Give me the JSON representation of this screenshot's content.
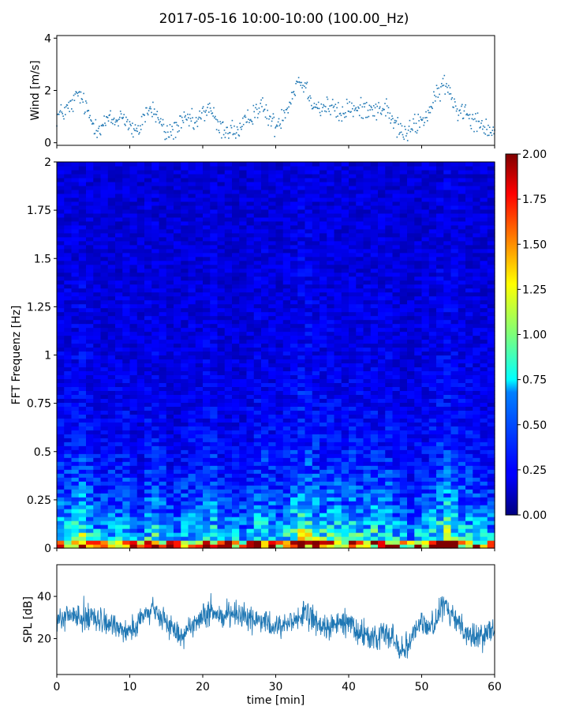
{
  "figure": {
    "title": "2017-05-16 10:00-10:00 (100.00_Hz)"
  },
  "chart_data": [
    {
      "type": "scatter",
      "name": "wind",
      "ylabel": "Wind [m/s]",
      "xlim": [
        0,
        60
      ],
      "ylim": [
        -0.1,
        4.1
      ],
      "yticks": [
        0,
        2,
        4
      ],
      "color": "#1f77b4",
      "x": [
        0,
        1,
        2,
        3,
        4,
        5,
        6,
        7,
        8,
        9,
        10,
        11,
        12,
        13,
        14,
        15,
        16,
        17,
        18,
        19,
        20,
        21,
        22,
        23,
        24,
        25,
        26,
        27,
        28,
        29,
        30,
        31,
        32,
        33,
        34,
        35,
        36,
        37,
        38,
        39,
        40,
        41,
        42,
        43,
        44,
        45,
        46,
        47,
        48,
        49,
        50,
        51,
        52,
        53,
        54,
        55,
        56,
        57,
        58,
        59,
        60
      ],
      "y": [
        1.0,
        1.2,
        1.4,
        1.9,
        1.3,
        0.7,
        0.6,
        0.9,
        0.8,
        1.1,
        0.6,
        0.3,
        1.1,
        1.3,
        0.9,
        0.3,
        0.5,
        0.7,
        0.9,
        0.7,
        1.1,
        1.4,
        0.6,
        0.5,
        0.5,
        0.4,
        0.8,
        1.2,
        1.4,
        1.0,
        0.6,
        1.1,
        1.6,
        2.4,
        2.2,
        1.6,
        1.3,
        1.4,
        1.3,
        1.0,
        1.4,
        1.2,
        1.3,
        1.4,
        1.2,
        1.4,
        0.8,
        0.5,
        0.3,
        0.7,
        0.8,
        1.2,
        1.7,
        2.3,
        1.8,
        1.2,
        1.3,
        0.9,
        0.8,
        0.6,
        0.3
      ]
    },
    {
      "type": "heatmap",
      "name": "spectrogram",
      "ylabel": "FFT Frequenz [Hz]",
      "xlim": [
        0,
        60
      ],
      "ylim": [
        0,
        2
      ],
      "yticks": [
        0,
        0.25,
        0.5,
        0.75,
        1,
        1.25,
        1.5,
        1.75,
        2
      ],
      "ytick_labels": [
        "0",
        "0.25",
        "0.5",
        "0.75",
        "1",
        "1.25",
        "1.5",
        "1.75",
        "2"
      ],
      "colormap": "jet",
      "clim": [
        0.0,
        2.0
      ],
      "colorbar_ticks": [
        "0.00",
        "0.25",
        "0.50",
        "0.75",
        "1.00",
        "1.25",
        "1.50",
        "1.75",
        "2.00"
      ]
    },
    {
      "type": "line",
      "name": "spl",
      "ylabel": "SPL [dB]",
      "xlabel": "time [min]",
      "xlim": [
        0,
        60
      ],
      "ylim": [
        3,
        55
      ],
      "xticks": [
        0,
        10,
        20,
        30,
        40,
        50,
        60
      ],
      "yticks": [
        20,
        40
      ],
      "color": "#1f77b4",
      "x": [
        0,
        1,
        2,
        3,
        4,
        5,
        6,
        7,
        8,
        9,
        10,
        11,
        12,
        13,
        14,
        15,
        16,
        17,
        18,
        19,
        20,
        21,
        22,
        23,
        24,
        25,
        26,
        27,
        28,
        29,
        30,
        31,
        32,
        33,
        34,
        35,
        36,
        37,
        38,
        39,
        40,
        41,
        42,
        43,
        44,
        45,
        46,
        47,
        48,
        49,
        50,
        51,
        52,
        53,
        54,
        55,
        56,
        57,
        58,
        59,
        60
      ],
      "y": [
        27,
        30,
        32,
        30,
        29,
        30,
        28,
        26,
        27,
        25,
        24,
        26,
        31,
        33,
        31,
        28,
        24,
        22,
        25,
        27,
        30,
        31,
        32,
        31,
        33,
        32,
        30,
        29,
        28,
        26,
        25,
        27,
        28,
        30,
        31,
        29,
        27,
        25,
        26,
        27,
        29,
        24,
        22,
        21,
        20,
        24,
        21,
        15,
        17,
        24,
        28,
        25,
        29,
        36,
        31,
        28,
        24,
        21,
        20,
        24,
        28
      ]
    }
  ]
}
